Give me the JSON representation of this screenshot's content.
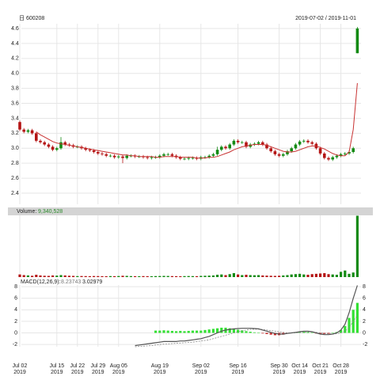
{
  "chart_data": {
    "type": "candlestick",
    "title": "日 600208",
    "subtitle": "2019-07-02 / 2019-11-01",
    "categories": [
      "Jul 02\n2019",
      null,
      null,
      null,
      null,
      null,
      null,
      null,
      null,
      "Jul 15\n2019",
      null,
      null,
      null,
      null,
      "Jul 22\n2019",
      null,
      null,
      null,
      null,
      "Jul 29\n2019",
      null,
      null,
      null,
      null,
      "Aug 05\n2019",
      null,
      null,
      null,
      null,
      null,
      null,
      null,
      null,
      null,
      "Aug 19\n2019",
      null,
      null,
      null,
      null,
      null,
      null,
      null,
      null,
      null,
      "Sep 02\n2019",
      null,
      null,
      null,
      null,
      null,
      null,
      null,
      null,
      "Sep 16\n2019",
      null,
      null,
      null,
      null,
      null,
      null,
      null,
      null,
      null,
      "Sep 30\n2019",
      null,
      null,
      null,
      null,
      "Oct 14\n2019",
      null,
      null,
      null,
      null,
      "Oct 21\n2019",
      null,
      null,
      null,
      null,
      "Oct 28\n2019",
      null,
      null,
      null,
      null
    ],
    "open": [
      3.35,
      3.25,
      3.22,
      3.24,
      3.2,
      3.1,
      3.08,
      3.05,
      3.02,
      2.98,
      3.0,
      3.08,
      3.05,
      3.04,
      3.02,
      3.02,
      3.0,
      2.98,
      2.97,
      2.95,
      2.93,
      2.92,
      2.9,
      2.9,
      2.88,
      2.89,
      2.87,
      2.9,
      2.9,
      2.89,
      2.89,
      2.88,
      2.87,
      2.88,
      2.88,
      2.9,
      2.92,
      2.92,
      2.9,
      2.88,
      2.86,
      2.86,
      2.87,
      2.87,
      2.86,
      2.88,
      2.88,
      2.9,
      2.92,
      2.98,
      3.02,
      3.0,
      3.05,
      3.1,
      3.08,
      3.08,
      3.02,
      3.05,
      3.06,
      3.08,
      3.05,
      3.0,
      2.96,
      2.92,
      2.9,
      2.92,
      2.96,
      3.0,
      3.05,
      3.09,
      3.1,
      3.08,
      3.06,
      3.0,
      2.93,
      2.87,
      2.85,
      2.88,
      2.9,
      2.92,
      2.93,
      2.95,
      4.27
    ],
    "high": [
      3.37,
      3.27,
      3.26,
      3.26,
      3.22,
      3.12,
      3.1,
      3.07,
      3.04,
      3.02,
      3.15,
      3.1,
      3.07,
      3.06,
      3.04,
      3.04,
      3.02,
      3.0,
      2.99,
      2.97,
      2.95,
      2.94,
      2.92,
      2.92,
      2.91,
      2.91,
      2.92,
      2.92,
      2.92,
      2.91,
      2.91,
      2.9,
      2.9,
      2.9,
      2.92,
      2.94,
      2.94,
      2.94,
      2.92,
      2.9,
      2.88,
      2.89,
      2.89,
      2.89,
      2.9,
      2.9,
      2.92,
      2.94,
      3.02,
      3.04,
      3.04,
      3.07,
      3.12,
      3.12,
      3.1,
      3.1,
      3.07,
      3.08,
      3.1,
      3.1,
      3.07,
      3.02,
      2.98,
      2.94,
      2.94,
      2.98,
      3.02,
      3.07,
      3.11,
      3.12,
      3.12,
      3.1,
      3.08,
      3.02,
      2.95,
      2.89,
      2.9,
      2.92,
      2.94,
      2.95,
      2.97,
      3.02,
      4.62
    ],
    "low": [
      3.23,
      3.2,
      3.2,
      3.18,
      3.08,
      3.06,
      3.03,
      3.0,
      2.96,
      2.96,
      2.98,
      3.03,
      3.02,
      3.0,
      3.0,
      2.98,
      2.96,
      2.95,
      2.93,
      2.91,
      2.9,
      2.88,
      2.88,
      2.86,
      2.86,
      2.8,
      2.85,
      2.88,
      2.87,
      2.87,
      2.86,
      2.85,
      2.85,
      2.86,
      2.86,
      2.88,
      2.9,
      2.88,
      2.86,
      2.84,
      2.84,
      2.84,
      2.85,
      2.84,
      2.84,
      2.86,
      2.86,
      2.88,
      2.9,
      2.96,
      2.98,
      2.98,
      3.03,
      3.06,
      3.06,
      3.0,
      3.0,
      3.03,
      3.04,
      3.03,
      2.98,
      2.94,
      2.9,
      2.88,
      2.88,
      2.9,
      2.94,
      2.98,
      3.03,
      3.07,
      3.06,
      3.04,
      2.98,
      2.91,
      2.85,
      2.83,
      2.83,
      2.86,
      2.88,
      2.9,
      2.91,
      2.93,
      4.27
    ],
    "close": [
      3.25,
      3.22,
      3.24,
      3.2,
      3.1,
      3.08,
      3.05,
      3.02,
      2.98,
      3.0,
      3.08,
      3.05,
      3.04,
      3.02,
      3.02,
      3.0,
      2.98,
      2.97,
      2.95,
      2.93,
      2.92,
      2.9,
      2.9,
      2.88,
      2.89,
      2.87,
      2.9,
      2.9,
      2.89,
      2.89,
      2.88,
      2.87,
      2.88,
      2.88,
      2.9,
      2.92,
      2.92,
      2.9,
      2.88,
      2.86,
      2.86,
      2.87,
      2.87,
      2.86,
      2.88,
      2.88,
      2.9,
      2.92,
      2.98,
      3.02,
      3.0,
      3.05,
      3.1,
      3.08,
      3.08,
      3.02,
      3.05,
      3.06,
      3.08,
      3.05,
      3.0,
      2.96,
      2.92,
      2.9,
      2.92,
      2.96,
      3.0,
      3.05,
      3.09,
      3.1,
      3.08,
      3.06,
      3.0,
      2.93,
      2.87,
      2.85,
      2.88,
      2.9,
      2.92,
      2.93,
      2.95,
      3.0,
      4.6
    ],
    "up_color": "#138a13",
    "down_color": "#b41414",
    "ma": {
      "color": "#c83232",
      "values": [
        null,
        null,
        null,
        null,
        3.22,
        3.18,
        3.15,
        3.12,
        3.09,
        3.07,
        3.06,
        3.05,
        3.04,
        3.03,
        3.02,
        3.01,
        3.0,
        2.99,
        2.98,
        2.97,
        2.96,
        2.95,
        2.94,
        2.93,
        2.92,
        2.91,
        2.91,
        2.9,
        2.9,
        2.89,
        2.89,
        2.89,
        2.89,
        2.88,
        2.88,
        2.89,
        2.89,
        2.89,
        2.89,
        2.88,
        2.88,
        2.88,
        2.88,
        2.87,
        2.87,
        2.87,
        2.88,
        2.88,
        2.89,
        2.91,
        2.93,
        2.95,
        2.98,
        3.0,
        3.02,
        3.03,
        3.04,
        3.05,
        3.05,
        3.05,
        3.04,
        3.02,
        3.0,
        2.98,
        2.96,
        2.95,
        2.95,
        2.96,
        2.98,
        3.0,
        3.02,
        3.03,
        3.03,
        3.01,
        2.99,
        2.96,
        2.93,
        2.91,
        2.9,
        2.9,
        2.95,
        3.25,
        3.87
      ]
    },
    "ylim": [
      2.4,
      4.6
    ],
    "yticks": [
      2.4,
      2.6,
      2.8,
      {
        "value": 3,
        "label": "3.0"
      },
      3.2,
      3.4,
      3.6,
      3.8,
      {
        "value": 4,
        "label": "4.0"
      },
      4.2,
      4.4,
      4.6
    ],
    "grid": true,
    "volume": {
      "title": "Volume:",
      "values": [
        400000,
        300000,
        250000,
        200000,
        350000,
        250000,
        200000,
        180000,
        250000,
        220000,
        300000,
        250000,
        200000,
        180000,
        150000,
        160000,
        150000,
        140000,
        160000,
        150000,
        140000,
        130000,
        150000,
        140000,
        160000,
        200000,
        180000,
        150000,
        140000,
        130000,
        150000,
        140000,
        130000,
        150000,
        160000,
        180000,
        170000,
        150000,
        140000,
        130000,
        150000,
        160000,
        150000,
        140000,
        180000,
        200000,
        220000,
        250000,
        350000,
        400000,
        300000,
        450000,
        600000,
        400000,
        300000,
        350000,
        300000,
        280000,
        300000,
        250000,
        220000,
        200000,
        180000,
        200000,
        250000,
        300000,
        400000,
        450000,
        500000,
        400000,
        350000,
        450000,
        500000,
        550000,
        600000,
        450000,
        400000,
        350000,
        800000,
        1000000,
        500000,
        700000,
        9340528
      ],
      "value_labels": [
        null,
        null,
        null,
        null,
        null,
        null,
        null,
        null,
        null,
        null,
        null,
        null,
        null,
        null,
        null,
        null,
        null,
        null,
        null,
        null,
        null,
        null,
        null,
        null,
        null,
        null,
        null,
        null,
        null,
        null,
        null,
        null,
        null,
        null,
        null,
        null,
        null,
        null,
        null,
        null,
        null,
        null,
        null,
        null,
        null,
        null,
        null,
        null,
        null,
        null,
        null,
        null,
        null,
        null,
        null,
        null,
        null,
        null,
        null,
        null,
        null,
        null,
        null,
        null,
        null,
        null,
        null,
        null,
        null,
        null,
        null,
        null,
        null,
        null,
        null,
        null,
        null,
        null,
        null,
        null,
        null,
        null,
        "9,340,528"
      ],
      "ylim": [
        0,
        9400000
      ]
    },
    "macd": {
      "title": "MACD(12,26,9):",
      "dif": {
        "color": "#555555",
        "values": [
          null,
          null,
          null,
          null,
          null,
          null,
          null,
          null,
          null,
          null,
          null,
          null,
          null,
          null,
          null,
          null,
          null,
          null,
          null,
          null,
          null,
          null,
          null,
          null,
          null,
          null,
          null,
          null,
          -2.2,
          -2.1,
          -2.0,
          -1.9,
          -1.8,
          -1.7,
          -1.6,
          -1.5,
          -1.5,
          -1.5,
          -1.5,
          -1.4,
          -1.4,
          -1.3,
          -1.2,
          -1.1,
          -1.0,
          -0.8,
          -0.6,
          -0.3,
          0,
          0.3,
          0.5,
          0.6,
          0.7,
          0.75,
          0.8,
          0.8,
          0.8,
          0.75,
          0.7,
          0.5,
          0.3,
          0.1,
          -0.1,
          -0.2,
          -0.2,
          -0.1,
          0,
          0.1,
          0.2,
          0.3,
          0.3,
          0.2,
          0,
          -0.2,
          -0.3,
          -0.3,
          -0.2,
          0,
          0.5,
          1.5,
          3.5,
          6.0,
          8.23743
        ]
      },
      "dea": {
        "color": "#888888",
        "values": [
          null,
          null,
          null,
          null,
          null,
          null,
          null,
          null,
          null,
          null,
          null,
          null,
          null,
          null,
          null,
          null,
          null,
          null,
          null,
          null,
          null,
          null,
          null,
          null,
          null,
          null,
          null,
          null,
          -2.4,
          -2.35,
          -2.3,
          -2.25,
          -2.2,
          -2.1,
          -2.0,
          -1.95,
          -1.9,
          -1.85,
          -1.8,
          -1.75,
          -1.7,
          -1.65,
          -1.6,
          -1.5,
          -1.4,
          -1.3,
          -1.2,
          -1.0,
          -0.8,
          -0.6,
          -0.4,
          -0.2,
          0,
          0.2,
          0.35,
          0.5,
          0.6,
          0.65,
          0.65,
          0.6,
          0.5,
          0.4,
          0.3,
          0.2,
          0.1,
          0,
          0,
          0,
          0.05,
          0.1,
          0.15,
          0.15,
          0.1,
          0,
          -0.1,
          -0.15,
          -0.2,
          -0.15,
          0,
          0.3,
          0.9,
          2.0,
          3.02979
        ]
      },
      "hist": {
        "up_color": "#33e033",
        "down_color": "#c82828",
        "values": [
          null,
          null,
          null,
          null,
          null,
          null,
          null,
          null,
          null,
          null,
          null,
          null,
          null,
          null,
          null,
          null,
          null,
          null,
          null,
          null,
          null,
          null,
          null,
          null,
          null,
          null,
          null,
          null,
          null,
          null,
          null,
          null,
          null,
          0.4,
          0.4,
          0.45,
          0.4,
          0.35,
          0.3,
          0.35,
          0.3,
          0.35,
          0.4,
          0.4,
          0.4,
          0.5,
          0.6,
          0.7,
          0.8,
          0.9,
          0.9,
          0.8,
          0.7,
          0.55,
          0.45,
          0.3,
          0.2,
          0.1,
          0.05,
          -0.1,
          -0.2,
          -0.3,
          -0.4,
          -0.4,
          -0.3,
          -0.1,
          0,
          0.1,
          0.15,
          0.2,
          0.15,
          0.05,
          -0.1,
          -0.2,
          -0.2,
          -0.15,
          0,
          0.15,
          0.5,
          1.2,
          2.6,
          4.0,
          5.2
        ]
      },
      "ylim": [
        -2.4,
        8.3
      ],
      "yticks": [
        -2,
        0,
        2,
        4,
        6,
        8
      ]
    }
  }
}
